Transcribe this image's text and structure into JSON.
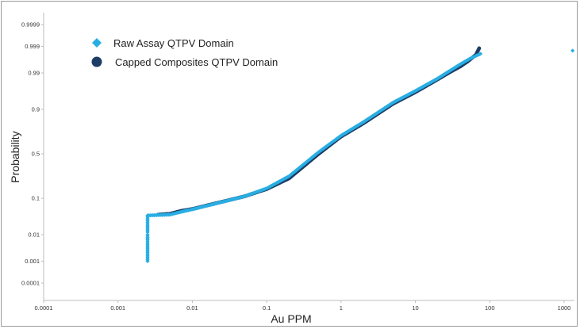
{
  "chart_data": {
    "type": "scatter",
    "x_scale": "log",
    "y_scale": "probability",
    "xlabel": "Au PPM",
    "ylabel": "Probability",
    "xlim": [
      0.0001,
      1500
    ],
    "ylim": [
      1e-05,
      0.99999
    ],
    "x_ticks": [
      0.0001,
      0.001,
      0.01,
      0.1,
      1,
      10,
      100,
      1000
    ],
    "x_tick_labels": [
      "0.0001",
      "0.001",
      "0.01",
      "0.1",
      "1",
      "10",
      "100",
      "1000"
    ],
    "y_ticks": [
      0.0001,
      0.001,
      0.01,
      0.1,
      0.5,
      0.9,
      0.99,
      0.999,
      0.9999
    ],
    "y_tick_labels": [
      "0.0001",
      "0.001",
      "0.01",
      "0.1",
      "0.5",
      "0.9",
      "0.99",
      "0.999",
      "0.9999"
    ],
    "grid": false,
    "legend_position": "top-left",
    "series": [
      {
        "name": "Raw Assay QTPV Domain",
        "marker": "diamond",
        "color": "#29aee3",
        "points": [
          [
            0.0025,
            0.001
          ],
          [
            0.0025,
            0.0017
          ],
          [
            0.0025,
            0.0025
          ],
          [
            0.0025,
            0.0035
          ],
          [
            0.0025,
            0.005
          ],
          [
            0.0025,
            0.0065
          ],
          [
            0.0025,
            0.008
          ],
          [
            0.0025,
            0.01
          ],
          [
            0.0025,
            0.012
          ],
          [
            0.0025,
            0.015
          ],
          [
            0.0025,
            0.018
          ],
          [
            0.0025,
            0.022
          ],
          [
            0.0025,
            0.027
          ],
          [
            0.0025,
            0.032
          ],
          [
            0.0025,
            0.038
          ],
          [
            0.005,
            0.04
          ],
          [
            0.007,
            0.047
          ],
          [
            0.01,
            0.055
          ],
          [
            0.02,
            0.075
          ],
          [
            0.05,
            0.11
          ],
          [
            0.1,
            0.16
          ],
          [
            0.2,
            0.26
          ],
          [
            0.5,
            0.52
          ],
          [
            1,
            0.7
          ],
          [
            2,
            0.82
          ],
          [
            5,
            0.93
          ],
          [
            10,
            0.965
          ],
          [
            20,
            0.985
          ],
          [
            30,
            0.992
          ],
          [
            40,
            0.995
          ],
          [
            55,
            0.997
          ],
          [
            75,
            0.998
          ],
          [
            1300,
            0.9985
          ]
        ]
      },
      {
        "name": "Capped Composites QTPV Domain",
        "marker": "circle",
        "color": "#1c3d66",
        "points": [
          [
            0.0035,
            0.04
          ],
          [
            0.005,
            0.042
          ],
          [
            0.007,
            0.05
          ],
          [
            0.01,
            0.056
          ],
          [
            0.02,
            0.076
          ],
          [
            0.05,
            0.11
          ],
          [
            0.1,
            0.155
          ],
          [
            0.2,
            0.24
          ],
          [
            0.5,
            0.5
          ],
          [
            1,
            0.69
          ],
          [
            2,
            0.81
          ],
          [
            5,
            0.925
          ],
          [
            10,
            0.962
          ],
          [
            20,
            0.984
          ],
          [
            30,
            0.991
          ],
          [
            40,
            0.994
          ],
          [
            50,
            0.996
          ],
          [
            65,
            0.9978
          ],
          [
            72,
            0.9988
          ]
        ]
      }
    ]
  }
}
